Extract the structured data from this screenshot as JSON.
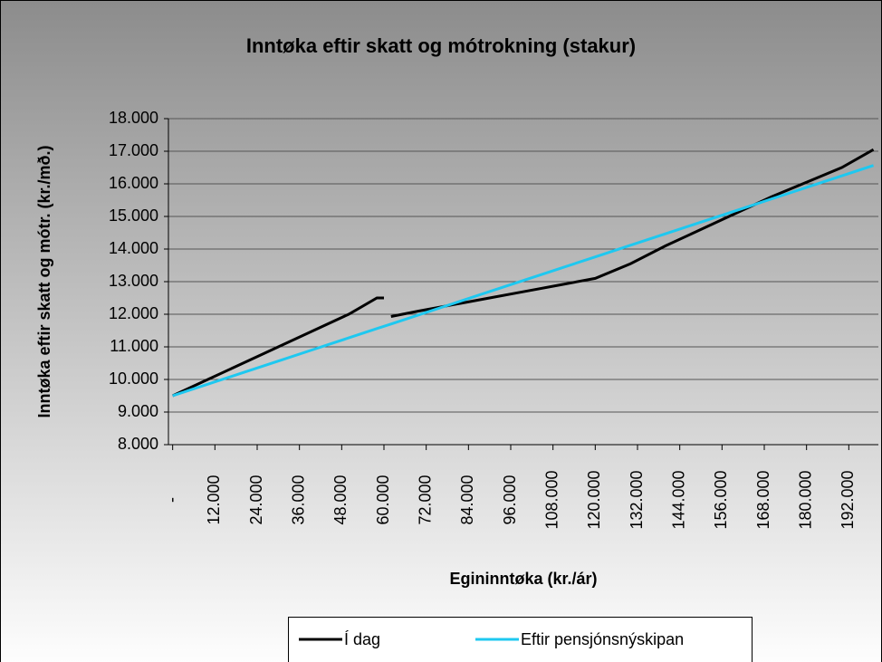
{
  "chart_data": {
    "type": "line",
    "title": "Inntøka eftir skatt og mótrokning (stakur)",
    "y_label": "Inntøka eftir skatt og mótr. (kr./mð.)",
    "x_label": "Egininntøka (kr./ár)",
    "x": [
      0,
      10000,
      20000,
      30000,
      40000,
      50000,
      58000,
      60000,
      61000,
      62000,
      70000,
      80000,
      90000,
      100000,
      110000,
      120000,
      130000,
      140000,
      150000,
      160000,
      170000,
      180000,
      190000,
      199000
    ],
    "series": [
      {
        "name": "Í dag",
        "color": "#000000",
        "values": [
          9500,
          10000,
          10500,
          11000,
          11500,
          12000,
          12500,
          12500,
          null,
          11930,
          12100,
          12300,
          12500,
          12700,
          12900,
          13100,
          13550,
          14100,
          14600,
          15100,
          15600,
          16050,
          16500,
          17050
        ]
      },
      {
        "name": "Eftir pensjónsnýskipan",
        "color": "#1ec8f0",
        "values": [
          9500,
          9855,
          10210,
          10565,
          10920,
          11275,
          11560,
          11630,
          11665,
          11700,
          11985,
          12340,
          12695,
          13050,
          13405,
          13760,
          14115,
          14470,
          14825,
          15180,
          15535,
          15890,
          16245,
          16565
        ]
      }
    ],
    "xlim": [
      -1200,
      200400
    ],
    "xticks": [
      {
        "value": 0,
        "label": "-"
      },
      {
        "value": 12000,
        "label": "12.000"
      },
      {
        "value": 24000,
        "label": "24.000"
      },
      {
        "value": 36000,
        "label": "36.000"
      },
      {
        "value": 48000,
        "label": "48.000"
      },
      {
        "value": 60000,
        "label": "60.000"
      },
      {
        "value": 72000,
        "label": "72.000"
      },
      {
        "value": 84000,
        "label": "84.000"
      },
      {
        "value": 96000,
        "label": "96.000"
      },
      {
        "value": 108000,
        "label": "108.000"
      },
      {
        "value": 120000,
        "label": "120.000"
      },
      {
        "value": 132000,
        "label": "132.000"
      },
      {
        "value": 144000,
        "label": "144.000"
      },
      {
        "value": 156000,
        "label": "156.000"
      },
      {
        "value": 168000,
        "label": "168.000"
      },
      {
        "value": 180000,
        "label": "180.000"
      },
      {
        "value": 192000,
        "label": "192.000"
      }
    ],
    "ylim": [
      8000,
      18000
    ],
    "yticks": [
      {
        "value": 8000,
        "label": "8.000"
      },
      {
        "value": 9000,
        "label": "9.000"
      },
      {
        "value": 10000,
        "label": "10.000"
      },
      {
        "value": 11000,
        "label": "11.000"
      },
      {
        "value": 12000,
        "label": "12.000"
      },
      {
        "value": 13000,
        "label": "13.000"
      },
      {
        "value": 14000,
        "label": "14.000"
      },
      {
        "value": 15000,
        "label": "15.000"
      },
      {
        "value": 16000,
        "label": "16.000"
      },
      {
        "value": 17000,
        "label": "17.000"
      },
      {
        "value": 18000,
        "label": "18.000"
      }
    ],
    "grid": true,
    "legend": "bottom"
  }
}
